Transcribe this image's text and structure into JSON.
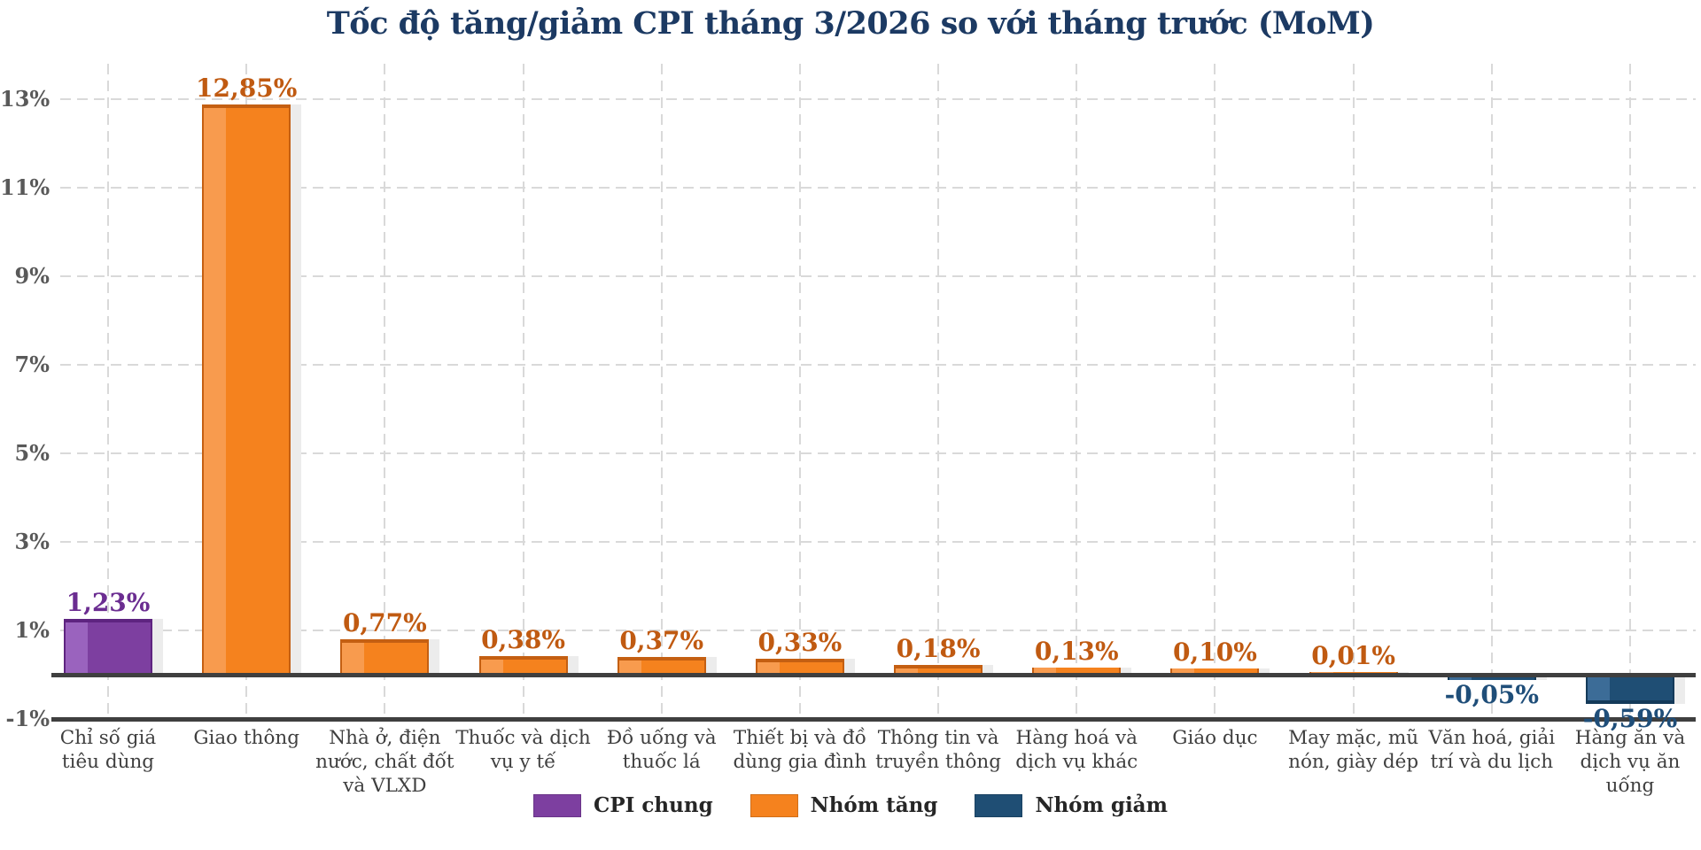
{
  "chart_data": {
    "type": "bar",
    "title": "Tốc độ tăng/giảm CPI tháng 3/2026 so với tháng trước (MoM)",
    "xlabel": "",
    "ylabel": "",
    "ylim": [
      -1,
      13
    ],
    "grid": "dashed-both-axes",
    "legend_position": "bottom-center",
    "ytick_values": [
      13,
      11,
      9,
      7,
      5,
      3,
      1,
      -1
    ],
    "ytick_labels": [
      "13%",
      "11%",
      "9%",
      "7%",
      "5%",
      "3%",
      "1%",
      "-1%"
    ],
    "categories": [
      "Chỉ số giá tiêu dùng",
      "Giao thông",
      "Nhà ở, điện nước, chất đốt và VLXD",
      "Thuốc và dịch vụ y tế",
      "Đồ uống và thuốc lá",
      "Thiết bị và đồ dùng gia đình",
      "Thông tin và truyền thông",
      "Hàng hoá và dịch vụ khác",
      "Giáo dục",
      "May mặc, mũ nón, giày dép",
      "Văn hoá, giải trí và du lịch",
      "Hàng ăn và dịch vụ ăn uống"
    ],
    "category_lines": [
      [
        "Chỉ số giá",
        "tiêu dùng"
      ],
      [
        "Giao thông"
      ],
      [
        "Nhà ở, điện",
        "nước, chất đốt",
        "và VLXD"
      ],
      [
        "Thuốc và dịch",
        "vụ y tế"
      ],
      [
        "Đồ uống và",
        "thuốc lá"
      ],
      [
        "Thiết bị và đồ",
        "dùng gia đình"
      ],
      [
        "Thông tin và",
        "truyền thông"
      ],
      [
        "Hàng hoá và",
        "dịch vụ khác"
      ],
      [
        "Giáo dục"
      ],
      [
        "May mặc, mũ",
        "nón, giày dép"
      ],
      [
        "Văn hoá, giải",
        "trí và du lịch"
      ],
      [
        "Hàng ăn và",
        "dịch vụ ăn",
        "uống"
      ]
    ],
    "values": [
      1.23,
      12.85,
      0.77,
      0.38,
      0.37,
      0.33,
      0.18,
      0.13,
      0.1,
      0.01,
      -0.05,
      -0.59
    ],
    "value_labels": [
      "1,23%",
      "12,85%",
      "0,77%",
      "0,38%",
      "0,37%",
      "0,33%",
      "0,18%",
      "0,13%",
      "0,10%",
      "0,01%",
      "-0,05%",
      "-0,59%"
    ],
    "groups": [
      "cpi",
      "up",
      "up",
      "up",
      "up",
      "up",
      "up",
      "up",
      "up",
      "up",
      "down",
      "down"
    ],
    "legend": [
      {
        "label": "CPI chung",
        "group": "cpi"
      },
      {
        "label": "Nhóm tăng",
        "group": "up"
      },
      {
        "label": "Nhóm giảm",
        "group": "down"
      }
    ]
  },
  "colors": {
    "cpi": {
      "main": "#7D3FA0",
      "light": "#9A63BE",
      "dark": "#5E2480",
      "label": "#6B2D91"
    },
    "up": {
      "main": "#F5821E",
      "light": "#F89B4E",
      "dark": "#C45F12",
      "label": "#C05A11"
    },
    "down": {
      "main": "#1F4E74",
      "light": "#3C6C97",
      "dark": "#143A59",
      "label": "#1F4E79"
    },
    "title_text": "#1C3A63",
    "tick_text": "#595959",
    "category_text": "#3F3F3F",
    "legend_text": "#262626",
    "gridline": "#D9D9D9",
    "axis_line": "#3F3F3F",
    "bar_shadow": "#ECECEC",
    "background": "#FFFFFF"
  }
}
